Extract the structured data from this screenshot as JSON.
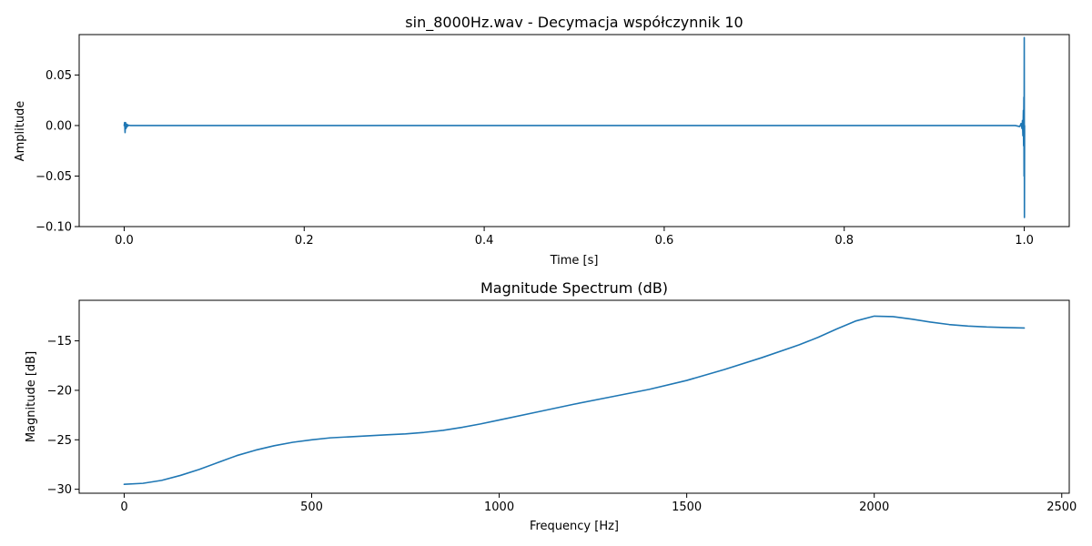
{
  "chart_data": [
    {
      "type": "line",
      "title": "sin_8000Hz.wav - Decymacja współczynnik 10",
      "xlabel": "Time [s]",
      "ylabel": "Amplitude",
      "xlim": [
        -0.05,
        1.05
      ],
      "ylim": [
        -0.1,
        0.09
      ],
      "xticks": [
        0.0,
        0.2,
        0.4,
        0.6,
        0.8,
        1.0
      ],
      "xtick_labels": [
        "0.0",
        "0.2",
        "0.4",
        "0.6",
        "0.8",
        "1.0"
      ],
      "yticks": [
        -0.1,
        -0.05,
        0.0,
        0.05
      ],
      "ytick_labels": [
        "−0.10",
        "−0.05",
        "0.00",
        "0.05"
      ],
      "color": "#1f77b4",
      "grid": false,
      "series": [
        {
          "x": [
            0.0,
            0.0005,
            0.001,
            0.0015,
            0.002,
            0.0025,
            0.003,
            0.0035,
            0.004,
            0.005,
            0.007,
            0.01,
            0.1,
            0.3,
            0.5,
            0.7,
            0.9,
            0.98,
            0.99,
            0.995,
            0.9965,
            0.9975,
            0.998,
            0.9985,
            0.999,
            0.9993,
            0.9996,
            0.9998,
            1.0,
            1.0002,
            1.0004
          ],
          "y": [
            0.0,
            0.003,
            -0.007,
            0.003,
            -0.003,
            0.0015,
            -0.0015,
            0.001,
            -0.0005,
            0.0003,
            0.0,
            0.0,
            0.0,
            0.0,
            0.0,
            0.0,
            0.0,
            0.0,
            0.0,
            -0.001,
            0.002,
            -0.003,
            0.005,
            -0.01,
            0.015,
            -0.02,
            0.028,
            -0.05,
            0.087,
            -0.091,
            0.0
          ]
        }
      ]
    },
    {
      "type": "line",
      "title": "Magnitude Spectrum (dB)",
      "xlabel": "Frequency [Hz]",
      "ylabel": "Magnitude [dB]",
      "xlim": [
        -120,
        2520
      ],
      "ylim": [
        -30.4,
        -10.9
      ],
      "xticks": [
        0,
        500,
        1000,
        1500,
        2000,
        2500
      ],
      "xtick_labels": [
        "0",
        "500",
        "1000",
        "1500",
        "2000",
        "2500"
      ],
      "yticks": [
        -30,
        -25,
        -20,
        -15
      ],
      "ytick_labels": [
        "−30",
        "−25",
        "−20",
        "−15"
      ],
      "color": "#1f77b4",
      "grid": false,
      "series": [
        {
          "x": [
            0,
            50,
            100,
            150,
            200,
            250,
            300,
            350,
            400,
            450,
            500,
            550,
            600,
            650,
            700,
            750,
            800,
            850,
            900,
            950,
            1000,
            1100,
            1200,
            1300,
            1400,
            1500,
            1600,
            1700,
            1800,
            1850,
            1900,
            1950,
            2000,
            2050,
            2100,
            2150,
            2200,
            2250,
            2300,
            2350,
            2400
          ],
          "y": [
            -29.5,
            -29.4,
            -29.1,
            -28.6,
            -28.0,
            -27.3,
            -26.6,
            -26.05,
            -25.6,
            -25.25,
            -25.0,
            -24.8,
            -24.7,
            -24.6,
            -24.5,
            -24.4,
            -24.25,
            -24.05,
            -23.75,
            -23.4,
            -23.0,
            -22.2,
            -21.4,
            -20.65,
            -19.9,
            -19.0,
            -17.9,
            -16.7,
            -15.4,
            -14.65,
            -13.8,
            -13.0,
            -12.5,
            -12.55,
            -12.8,
            -13.1,
            -13.35,
            -13.5,
            -13.6,
            -13.65,
            -13.7
          ]
        }
      ]
    }
  ]
}
